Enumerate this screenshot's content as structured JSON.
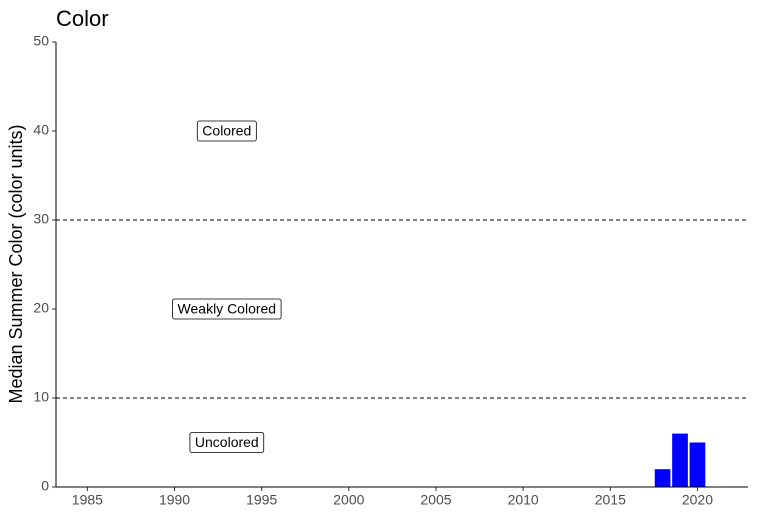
{
  "chart_data": {
    "type": "bar",
    "title": "Color",
    "y_label": "Median Summer Color (color units)",
    "x": [
      2018,
      2019,
      2020
    ],
    "values": [
      2,
      6,
      5
    ],
    "color": "#0000ff",
    "xlim": [
      1983.2,
      2022.9
    ],
    "xticks": [
      1985,
      1990,
      1995,
      2000,
      2005,
      2010,
      2015,
      2020
    ],
    "ylim": [
      0,
      50
    ],
    "yticks": [
      0,
      10,
      20,
      30,
      40,
      50
    ],
    "hlines": [
      10,
      30
    ],
    "annotations": [
      {
        "text": "Colored",
        "x": 1993,
        "y": 40
      },
      {
        "text": "Weakly Colored",
        "x": 1993,
        "y": 20
      },
      {
        "text": "Uncolored",
        "x": 1993,
        "y": 5
      }
    ],
    "grid": false
  }
}
